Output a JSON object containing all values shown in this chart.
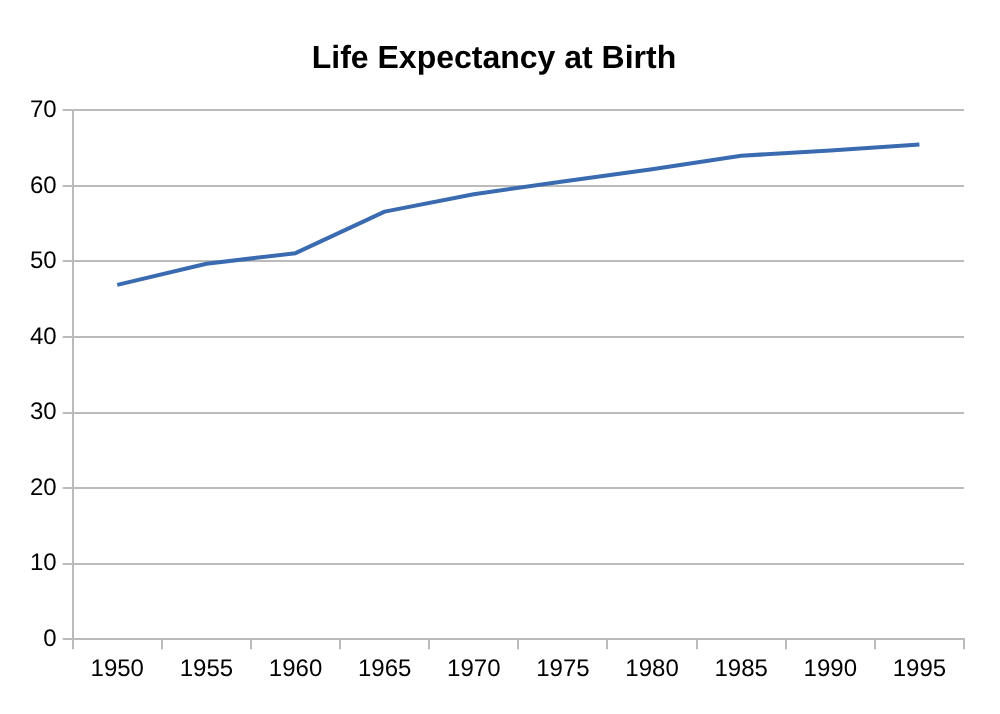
{
  "chart_data": {
    "type": "line",
    "title": "Life Expectancy at Birth",
    "categories": [
      "1950",
      "1955",
      "1960",
      "1965",
      "1970",
      "1975",
      "1980",
      "1985",
      "1990",
      "1995"
    ],
    "series": [
      {
        "color": "#3a6bb0",
        "values": [
          46.9,
          49.7,
          51.1,
          56.6,
          58.9,
          60.6,
          62.2,
          64.0,
          64.7,
          65.5
        ]
      }
    ],
    "ylim": [
      0,
      70
    ],
    "yticks": [
      0,
      10,
      20,
      30,
      40,
      50,
      60,
      70
    ],
    "grid": "y",
    "legend": false,
    "marker": "none"
  }
}
